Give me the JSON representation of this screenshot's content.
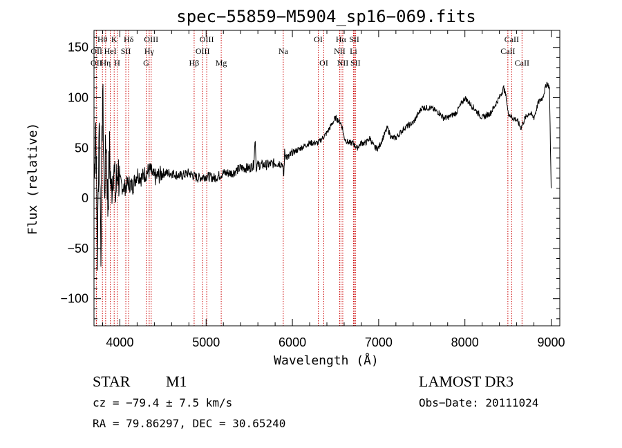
{
  "chart_data": {
    "type": "line",
    "title": "spec−55859−M5904_sp16−069.fits",
    "xlabel": "Wavelength (Å)",
    "ylabel": "Flux (relative)",
    "xlim": [
      3700,
      9100
    ],
    "ylim": [
      -127,
      167
    ],
    "x_ticks": [
      4000,
      5000,
      6000,
      7000,
      8000,
      9000
    ],
    "y_ticks": [
      -100,
      -50,
      0,
      50,
      100,
      150
    ],
    "y_tick_labels": [
      "−100",
      "−50",
      "0",
      "50",
      "100",
      "150"
    ],
    "grid": false,
    "series": [
      {
        "name": "flux",
        "color": "#000000",
        "x": [
          3700,
          3720,
          3740,
          3760,
          3780,
          3800,
          3820,
          3840,
          3860,
          3880,
          3900,
          3925,
          3950,
          3975,
          4000,
          4050,
          4100,
          4150,
          4200,
          4250,
          4300,
          4350,
          4400,
          4500,
          4600,
          4700,
          4800,
          4900,
          5000,
          5100,
          5200,
          5300,
          5400,
          5500,
          5550,
          5570,
          5580,
          5590,
          5600,
          5700,
          5800,
          5880,
          5900,
          5910,
          5950,
          6000,
          6100,
          6200,
          6300,
          6400,
          6500,
          6560,
          6580,
          6600,
          6650,
          6700,
          6750,
          6800,
          6850,
          6900,
          6950,
          7000,
          7050,
          7100,
          7150,
          7200,
          7300,
          7400,
          7500,
          7600,
          7700,
          7750,
          7800,
          7900,
          8000,
          8100,
          8200,
          8300,
          8400,
          8450,
          8480,
          8500,
          8550,
          8600,
          8650,
          8700,
          8750,
          8800,
          8850,
          8900,
          8950,
          8980,
          9000
        ],
        "values": [
          20,
          75,
          -60,
          90,
          -50,
          110,
          0,
          60,
          -10,
          45,
          5,
          35,
          0,
          30,
          15,
          10,
          15,
          12,
          25,
          20,
          25,
          28,
          20,
          25,
          25,
          22,
          25,
          20,
          22,
          20,
          25,
          25,
          30,
          30,
          33,
          60,
          30,
          33,
          33,
          33,
          35,
          35,
          22,
          45,
          40,
          45,
          50,
          55,
          55,
          65,
          80,
          75,
          70,
          60,
          55,
          55,
          50,
          55,
          55,
          60,
          50,
          50,
          60,
          70,
          60,
          60,
          70,
          75,
          90,
          90,
          85,
          80,
          80,
          85,
          100,
          90,
          80,
          85,
          100,
          110,
          100,
          85,
          80,
          78,
          70,
          80,
          85,
          80,
          95,
          100,
          115,
          110,
          10
        ]
      }
    ],
    "emission_lines": [
      {
        "label": "OII",
        "wavelength": 3727,
        "row": 3
      },
      {
        "label": "Hθ",
        "wavelength": 3798,
        "row": 1
      },
      {
        "label": "OII",
        "wavelength": 3729,
        "row": 2
      },
      {
        "label": "Hη",
        "wavelength": 3835,
        "row": 3
      },
      {
        "label": "K",
        "wavelength": 3934,
        "row": 1
      },
      {
        "label": "HeI",
        "wavelength": 3889,
        "row": 2
      },
      {
        "label": "H",
        "wavelength": 3969,
        "row": 3
      },
      {
        "label": "SII",
        "wavelength": 4069,
        "row": 2
      },
      {
        "label": "Hδ",
        "wavelength": 4102,
        "row": 1
      },
      {
        "label": "OIII",
        "wavelength": 4363,
        "row": 1
      },
      {
        "label": "Hγ",
        "wavelength": 4340,
        "row": 2
      },
      {
        "label": "G",
        "wavelength": 4305,
        "row": 3
      },
      {
        "label": "Hβ",
        "wavelength": 4861,
        "row": 3
      },
      {
        "label": "OIII",
        "wavelength": 5007,
        "row": 1
      },
      {
        "label": "OIII",
        "wavelength": 4959,
        "row": 2
      },
      {
        "label": "Mg",
        "wavelength": 5175,
        "row": 3
      },
      {
        "label": "Na",
        "wavelength": 5894,
        "row": 2
      },
      {
        "label": "OI",
        "wavelength": 6300,
        "row": 1
      },
      {
        "label": "OI",
        "wavelength": 6364,
        "row": 3
      },
      {
        "label": "Hα",
        "wavelength": 6563,
        "row": 1
      },
      {
        "label": "NII",
        "wavelength": 6548,
        "row": 2
      },
      {
        "label": "NII",
        "wavelength": 6584,
        "row": 3
      },
      {
        "label": "SII",
        "wavelength": 6717,
        "row": 1
      },
      {
        "label": "Li",
        "wavelength": 6708,
        "row": 2
      },
      {
        "label": "SII",
        "wavelength": 6731,
        "row": 3
      },
      {
        "label": "CaII",
        "wavelength": 8542,
        "row": 1
      },
      {
        "label": "CaII",
        "wavelength": 8498,
        "row": 2
      },
      {
        "label": "CaII",
        "wavelength": 8662,
        "row": 3
      }
    ],
    "line_color": "#cc0000"
  },
  "info": {
    "object_class": "STAR",
    "subclass": "M1",
    "survey": "LAMOST DR3",
    "cz": "cz = −79.4 ± 7.5 km/s",
    "obs_date": "Obs−Date: 20111024",
    "coords": "RA =  79.86297, DEC =  30.65240"
  }
}
